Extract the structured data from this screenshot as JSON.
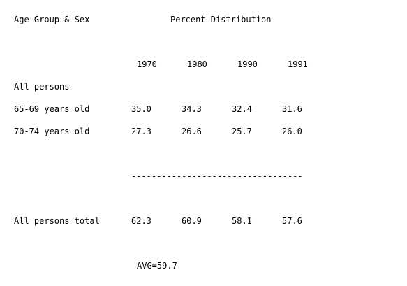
{
  "header": {
    "left": "Age Group & Sex",
    "right": "Percent Distribution"
  },
  "years": [
    "1970",
    "1980",
    "1990",
    "1991"
  ],
  "rows": [
    {
      "label": "All persons",
      "values": []
    },
    {
      "label": "65-69 years old",
      "values": [
        "35.0",
        "34.3",
        "32.4",
        "31.6"
      ]
    },
    {
      "label": "70-74 years old",
      "values": [
        "27.3",
        "26.6",
        "25.7",
        "26.0"
      ]
    }
  ],
  "divider": "----------------------------------",
  "total": {
    "label": "All persons total",
    "values": [
      "62.3",
      "60.9",
      "58.1",
      "57.6"
    ]
  },
  "average": "AVG=59.7"
}
